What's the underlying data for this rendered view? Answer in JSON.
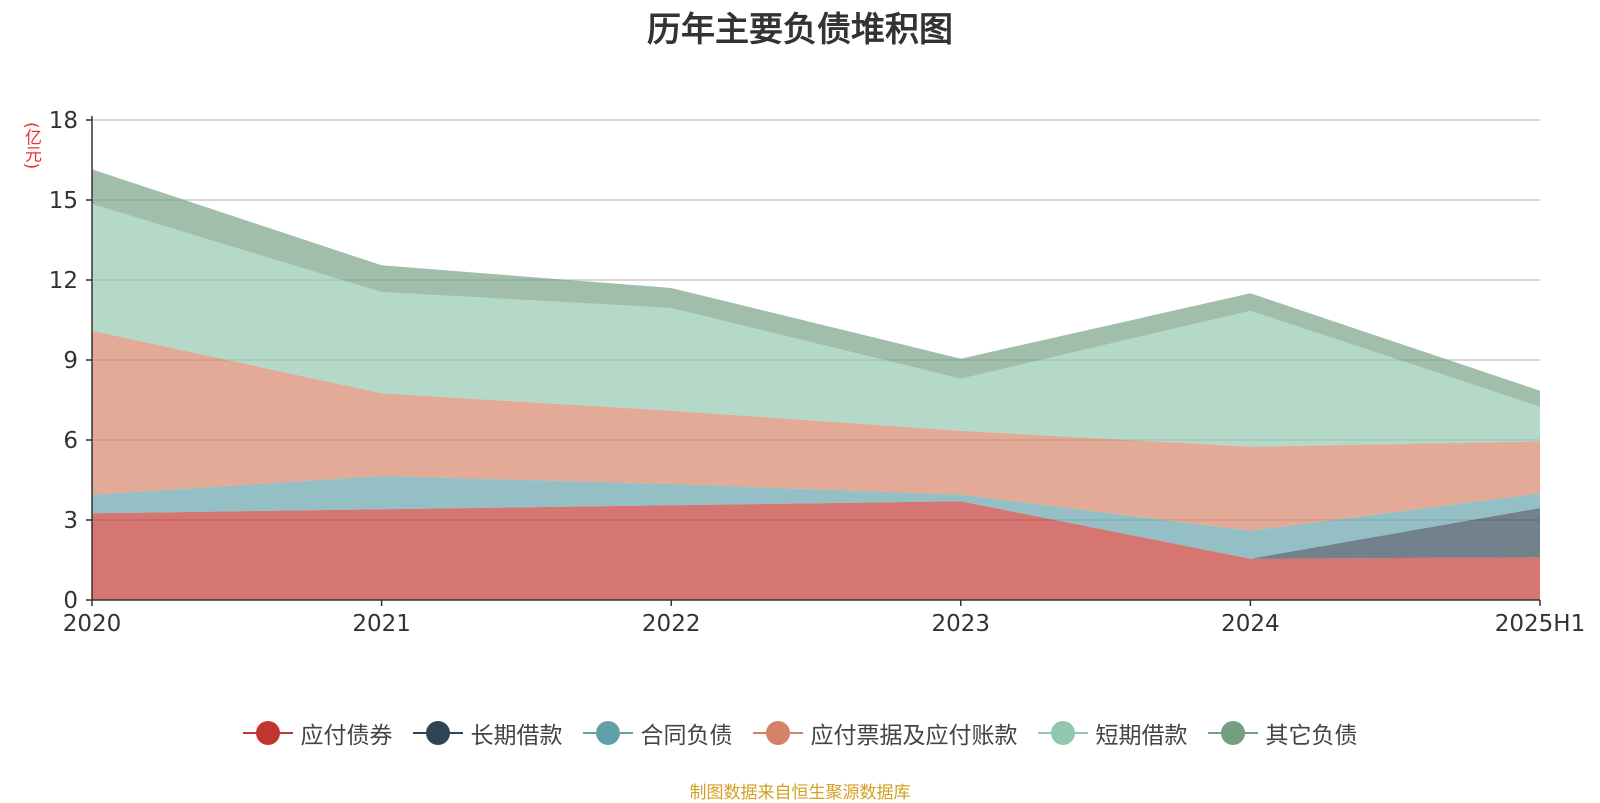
{
  "chart_data": {
    "type": "area",
    "title": "历年主要负债堆积图",
    "ylabel": "(亿元)",
    "xlabel": "",
    "stacked": true,
    "categories": [
      "2020",
      "2021",
      "2022",
      "2023",
      "2024",
      "2025H1"
    ],
    "ylim": [
      0,
      18
    ],
    "yticks": [
      0,
      3,
      6,
      9,
      12,
      15,
      18
    ],
    "grid": true,
    "legend_position": "bottom",
    "series": [
      {
        "name": "应付债券",
        "color": "#c23531",
        "values": [
          3.25,
          3.4,
          3.55,
          3.7,
          1.55,
          1.6
        ]
      },
      {
        "name": "长期借款",
        "color": "#2f4554",
        "values": [
          0.0,
          0.0,
          0.0,
          0.0,
          0.0,
          1.85
        ]
      },
      {
        "name": "合同负债",
        "color": "#61a0a8",
        "values": [
          0.7,
          1.25,
          0.8,
          0.25,
          1.05,
          0.55
        ]
      },
      {
        "name": "应付票据及应付账款",
        "color": "#d48265",
        "values": [
          6.15,
          3.1,
          2.75,
          2.4,
          3.15,
          1.95
        ]
      },
      {
        "name": "短期借款",
        "color": "#91c7ae",
        "values": [
          4.75,
          3.8,
          3.85,
          1.95,
          5.1,
          1.3
        ]
      },
      {
        "name": "其它负债",
        "color": "#749f83",
        "values": [
          1.3,
          1.0,
          0.75,
          0.75,
          0.65,
          0.6
        ]
      }
    ],
    "source": "制图数据来自恒生聚源数据库"
  }
}
